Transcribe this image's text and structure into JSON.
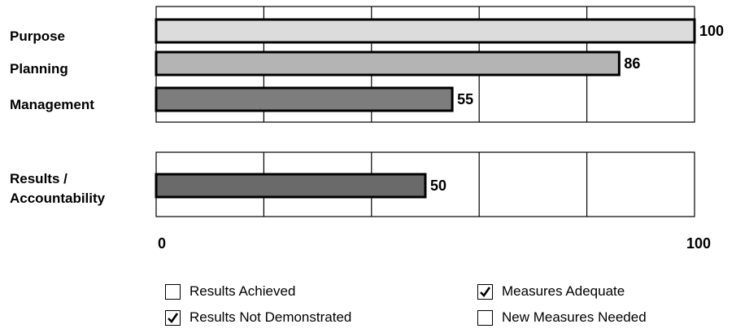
{
  "chart_data": {
    "type": "bar",
    "orientation": "horizontal",
    "xlim": [
      0,
      100
    ],
    "tick_labels": [
      "0",
      "100"
    ],
    "grid": true,
    "groups": [
      {
        "categories": [
          {
            "label": "Purpose",
            "value": 100,
            "color": "#dcdcdc"
          },
          {
            "label": "Planning",
            "value": 86,
            "color": "#b4b4b4"
          },
          {
            "label": "Management",
            "value": 55,
            "color": "#7d7d7d"
          }
        ]
      },
      {
        "categories": [
          {
            "label": "Results / Accountability",
            "label_lines": [
              "Results /",
              "Accountability"
            ],
            "value": 50,
            "color": "#6a6a6a"
          }
        ]
      }
    ]
  },
  "legend": {
    "items": [
      {
        "label": "Results Achieved",
        "checked": false
      },
      {
        "label": "Measures Adequate",
        "checked": true
      },
      {
        "label": "Results Not Demonstrated",
        "checked": true
      },
      {
        "label": "New Measures Needed",
        "checked": false
      }
    ]
  }
}
